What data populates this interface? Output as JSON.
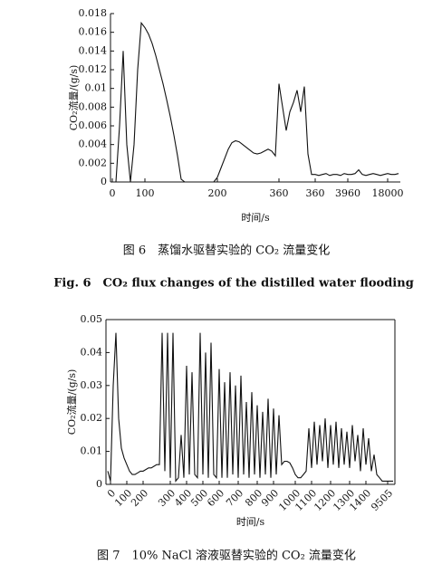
{
  "chart_data": [
    {
      "type": "line",
      "title": "图 6　蒸馏水驱替实验的 CO₂ 流量变化",
      "subtitle": "Fig. 6　CO₂ flux changes of the distilled water flooding",
      "x_label": "时间/s",
      "y_label": "CO₂流量/(g/s)",
      "color": "#111111",
      "ylim": [
        0,
        0.018
      ],
      "yticks": [
        0,
        0.002,
        0.004,
        0.006,
        0.008,
        0.01,
        0.012,
        0.014,
        0.016,
        0.018
      ],
      "categories": [
        "0",
        null,
        null,
        null,
        null,
        null,
        null,
        null,
        null,
        "100",
        null,
        null,
        null,
        null,
        null,
        null,
        null,
        null,
        null,
        null,
        null,
        null,
        null,
        null,
        null,
        null,
        null,
        null,
        null,
        "200",
        null,
        null,
        null,
        null,
        null,
        null,
        null,
        null,
        null,
        null,
        null,
        null,
        null,
        null,
        null,
        null,
        "360",
        null,
        null,
        null,
        null,
        null,
        null,
        null,
        null,
        null,
        "360",
        null,
        null,
        null,
        null,
        null,
        null,
        null,
        null,
        "3960",
        null,
        null,
        null,
        null,
        null,
        null,
        null,
        null,
        null,
        null,
        "18000",
        null,
        null,
        null
      ],
      "values": [
        0,
        0,
        0.006,
        0.014,
        0.004,
        0,
        0.004,
        0.012,
        0.017,
        0.0165,
        0.0158,
        0.0148,
        0.0135,
        0.012,
        0.0105,
        0.0088,
        0.007,
        0.005,
        0.0028,
        0.0003,
        0,
        0,
        0,
        0,
        0,
        0,
        0,
        0,
        0,
        0.0005,
        0.0015,
        0.0025,
        0.0035,
        0.0042,
        0.0044,
        0.0043,
        0.004,
        0.0037,
        0.0034,
        0.0031,
        0.003,
        0.0031,
        0.0033,
        0.0035,
        0.0033,
        0.0028,
        0.0105,
        0.008,
        0.0055,
        0.0075,
        0.0085,
        0.0098,
        0.0075,
        0.0102,
        0.003,
        0.0008,
        0.0008,
        0.0007,
        0.0008,
        0.0009,
        0.0007,
        0.0008,
        0.0008,
        0.0007,
        0.0009,
        0.0008,
        0.0008,
        0.0009,
        0.0013,
        0.0008,
        0.0007,
        0.0008,
        0.0009,
        0.0008,
        0.0007,
        0.0008,
        0.0009,
        0.0008,
        0.0008,
        0.0009
      ]
    },
    {
      "type": "line",
      "title": "图 7　10% NaCl 溶液驱替实验的 CO₂ 流量变化",
      "x_label": "时间/s",
      "y_label": "CO₂流量/(g/s)",
      "color": "#111111",
      "ylim": [
        0,
        0.05
      ],
      "yticks": [
        0,
        0.01,
        0.02,
        0.03,
        0.04,
        0.05
      ],
      "categories": [
        null,
        "0",
        null,
        null,
        null,
        null,
        null,
        "100",
        null,
        null,
        null,
        null,
        null,
        "200",
        null,
        null,
        null,
        null,
        null,
        null,
        null,
        null,
        null,
        "300",
        null,
        null,
        null,
        null,
        null,
        "400",
        null,
        null,
        null,
        null,
        null,
        "500",
        null,
        null,
        null,
        null,
        null,
        "600",
        null,
        null,
        null,
        null,
        null,
        null,
        "700",
        null,
        null,
        null,
        null,
        null,
        null,
        "800",
        null,
        null,
        null,
        null,
        null,
        "900",
        null,
        null,
        null,
        null,
        null,
        null,
        null,
        "1000",
        null,
        null,
        null,
        null,
        null,
        "1100",
        null,
        null,
        null,
        null,
        null,
        null,
        "1200",
        null,
        null,
        null,
        null,
        null,
        null,
        "1300",
        null,
        null,
        null,
        null,
        null,
        "1400",
        null,
        null,
        null,
        null,
        null,
        null,
        null,
        "9505",
        null,
        null
      ],
      "values": [
        0.004,
        0.001,
        0.03,
        0.046,
        0.02,
        0.011,
        0.008,
        0.006,
        0.004,
        0.003,
        0.003,
        0.0035,
        0.004,
        0.004,
        0.0045,
        0.005,
        0.005,
        0.0055,
        0.006,
        0.006,
        0.046,
        0.004,
        0.046,
        0.002,
        0.046,
        0.001,
        0.002,
        0.015,
        0.002,
        0.036,
        0.003,
        0.034,
        0.003,
        0.002,
        0.046,
        0.003,
        0.04,
        0.002,
        0.043,
        0.003,
        0.002,
        0.035,
        0.002,
        0.031,
        0.002,
        0.034,
        0.003,
        0.03,
        0.002,
        0.033,
        0.003,
        0.025,
        0.002,
        0.028,
        0.003,
        0.024,
        0.002,
        0.022,
        0.003,
        0.026,
        0.002,
        0.023,
        0.003,
        0.021,
        0.006,
        0.007,
        0.007,
        0.0065,
        0.005,
        0.003,
        0.002,
        0.002,
        0.003,
        0.004,
        0.017,
        0.005,
        0.019,
        0.006,
        0.018,
        0.007,
        0.02,
        0.005,
        0.018,
        0.006,
        0.019,
        0.005,
        0.017,
        0.006,
        0.016,
        0.005,
        0.018,
        0.007,
        0.015,
        0.004,
        0.017,
        0.006,
        0.014,
        0.004,
        0.009,
        0.003,
        0.002,
        0.001,
        0.001,
        0.001,
        0.001,
        0.001
      ]
    }
  ]
}
